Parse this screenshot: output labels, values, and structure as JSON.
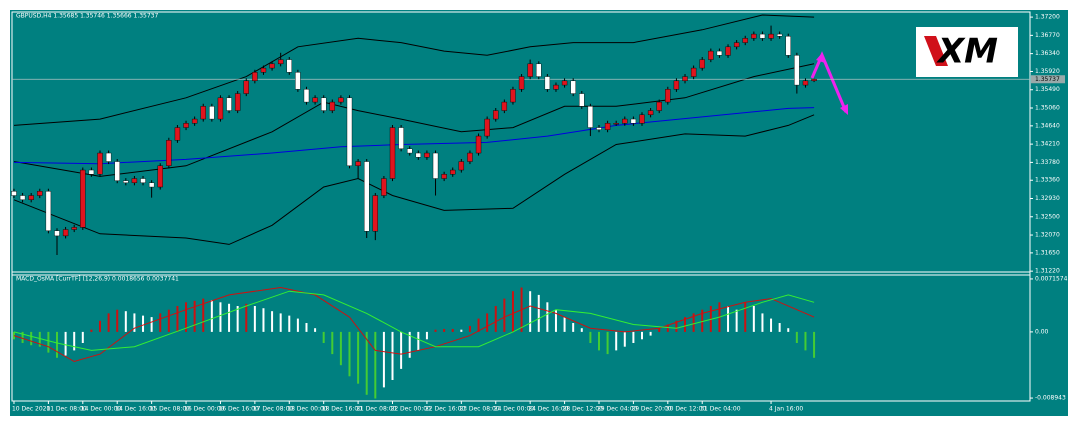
{
  "logo": "XM",
  "chart_data": [
    {
      "type": "candlestick",
      "title": "GBPUSD,H4 1.35685 1.35746 1.35666 1.35737",
      "xlim": [
        -0.23,
        118.1
      ],
      "ylim": [
        1.312,
        1.3732
      ],
      "yticks": [
        {
          "value": 1.372,
          "label": "1.37200"
        },
        {
          "value": 1.3677,
          "label": "1.36770"
        },
        {
          "value": 1.3634,
          "label": "1.36340"
        },
        {
          "value": 1.3592,
          "label": "1.35920"
        },
        {
          "value": 1.3549,
          "label": "1.35490"
        },
        {
          "value": 1.3506,
          "label": "1.35060"
        },
        {
          "value": 1.3464,
          "label": "1.34640"
        },
        {
          "value": 1.3421,
          "label": "1.34210"
        },
        {
          "value": 1.3378,
          "label": "1.33780"
        },
        {
          "value": 1.3336,
          "label": "1.33360"
        },
        {
          "value": 1.3293,
          "label": "1.32930"
        },
        {
          "value": 1.325,
          "label": "1.32500"
        },
        {
          "value": 1.3207,
          "label": "1.32070"
        },
        {
          "value": 1.3165,
          "label": "1.31650"
        },
        {
          "value": 1.3122,
          "label": "1.31220"
        }
      ],
      "current_price": 1.35737,
      "up_color": "#e0141e",
      "down_color": "#ffffff",
      "open": [
        1.331,
        1.33,
        1.329,
        1.33,
        1.331,
        1.3217,
        1.3205,
        1.322,
        1.3225,
        1.336,
        1.335,
        1.34,
        1.338,
        1.3335,
        1.333,
        1.334,
        1.333,
        1.332,
        1.337,
        1.343,
        1.346,
        1.347,
        1.348,
        1.351,
        1.348,
        1.353,
        1.35,
        1.354,
        1.357,
        1.359,
        1.36,
        1.361,
        1.362,
        1.359,
        1.355,
        1.352,
        1.353,
        1.35,
        1.352,
        1.353,
        1.337,
        1.338,
        1.3216,
        1.33,
        1.334,
        1.346,
        1.341,
        1.34,
        1.339,
        1.34,
        1.334,
        1.335,
        1.336,
        1.338,
        1.34,
        1.344,
        1.348,
        1.35,
        1.352,
        1.355,
        1.358,
        1.361,
        1.358,
        1.355,
        1.356,
        1.357,
        1.354,
        1.351,
        1.346,
        1.3455,
        1.347,
        1.347,
        1.348,
        1.347,
        1.349,
        1.35,
        1.352,
        1.355,
        1.357,
        1.358,
        1.36,
        1.362,
        1.364,
        1.363,
        1.365,
        1.366,
        1.367,
        1.368,
        1.367,
        1.368,
        1.3675,
        1.363,
        1.356,
        1.357
      ],
      "high": [
        1.3316,
        1.3306,
        1.3306,
        1.3316,
        1.3316,
        1.3223,
        1.3226,
        1.3231,
        1.3366,
        1.3366,
        1.3406,
        1.3406,
        1.3386,
        1.3341,
        1.3346,
        1.3346,
        1.3336,
        1.3376,
        1.3436,
        1.3466,
        1.3476,
        1.3486,
        1.3516,
        1.3516,
        1.3536,
        1.3536,
        1.3546,
        1.3576,
        1.3596,
        1.3606,
        1.3616,
        1.3636,
        1.3626,
        1.3596,
        1.3556,
        1.3536,
        1.3536,
        1.3526,
        1.3536,
        1.3536,
        1.3386,
        1.3386,
        1.3306,
        1.3346,
        1.3466,
        1.3466,
        1.3416,
        1.3406,
        1.3406,
        1.3406,
        1.3356,
        1.3366,
        1.3386,
        1.3406,
        1.3446,
        1.3486,
        1.3506,
        1.3526,
        1.3556,
        1.3586,
        1.362,
        1.3616,
        1.3586,
        1.3566,
        1.3576,
        1.3576,
        1.3546,
        1.3516,
        1.3466,
        1.3476,
        1.3476,
        1.3486,
        1.3486,
        1.3496,
        1.3506,
        1.3526,
        1.3556,
        1.3576,
        1.3586,
        1.3606,
        1.3626,
        1.3646,
        1.3646,
        1.3656,
        1.3666,
        1.3676,
        1.3686,
        1.3686,
        1.37,
        1.3686,
        1.3681,
        1.3636,
        1.3576,
        1.3575
      ],
      "low": [
        1.3294,
        1.3284,
        1.3284,
        1.3294,
        1.3211,
        1.316,
        1.3199,
        1.3214,
        1.3219,
        1.3344,
        1.3344,
        1.3374,
        1.3329,
        1.3324,
        1.3324,
        1.3324,
        1.3295,
        1.3314,
        1.3364,
        1.3424,
        1.3454,
        1.3464,
        1.3474,
        1.3474,
        1.3474,
        1.3494,
        1.3494,
        1.3534,
        1.3564,
        1.3584,
        1.3594,
        1.3604,
        1.3584,
        1.3544,
        1.3514,
        1.3514,
        1.3494,
        1.3494,
        1.3514,
        1.3364,
        1.334,
        1.32,
        1.3195,
        1.3294,
        1.3334,
        1.3404,
        1.3394,
        1.3384,
        1.3384,
        1.33,
        1.3334,
        1.3344,
        1.3354,
        1.3374,
        1.3394,
        1.3434,
        1.3474,
        1.3494,
        1.3514,
        1.3544,
        1.3574,
        1.3574,
        1.3544,
        1.3544,
        1.3554,
        1.3534,
        1.3504,
        1.344,
        1.3449,
        1.3449,
        1.3464,
        1.3464,
        1.3464,
        1.3464,
        1.3484,
        1.3494,
        1.3514,
        1.3544,
        1.3564,
        1.3574,
        1.3594,
        1.3614,
        1.3624,
        1.3624,
        1.3644,
        1.3654,
        1.3664,
        1.3664,
        1.3664,
        1.3669,
        1.3624,
        1.354,
        1.3554,
        1.3567
      ],
      "close": [
        1.33,
        1.329,
        1.33,
        1.331,
        1.3217,
        1.3205,
        1.322,
        1.3225,
        1.336,
        1.335,
        1.34,
        1.338,
        1.3335,
        1.333,
        1.334,
        1.333,
        1.332,
        1.337,
        1.343,
        1.346,
        1.347,
        1.348,
        1.351,
        1.348,
        1.353,
        1.35,
        1.354,
        1.357,
        1.359,
        1.36,
        1.361,
        1.362,
        1.359,
        1.355,
        1.352,
        1.353,
        1.35,
        1.352,
        1.353,
        1.337,
        1.338,
        1.3216,
        1.33,
        1.334,
        1.346,
        1.341,
        1.34,
        1.339,
        1.34,
        1.334,
        1.335,
        1.336,
        1.338,
        1.34,
        1.344,
        1.348,
        1.35,
        1.352,
        1.355,
        1.358,
        1.361,
        1.358,
        1.355,
        1.356,
        1.357,
        1.354,
        1.351,
        1.346,
        1.3455,
        1.347,
        1.347,
        1.348,
        1.347,
        1.349,
        1.35,
        1.352,
        1.355,
        1.357,
        1.358,
        1.36,
        1.362,
        1.364,
        1.363,
        1.365,
        1.366,
        1.367,
        1.368,
        1.367,
        1.368,
        1.3675,
        1.363,
        1.356,
        1.357,
        1.3574
      ],
      "lines": [
        {
          "color": "#000000",
          "x": [
            0,
            10,
            20,
            27,
            33,
            40,
            45,
            50,
            55,
            60,
            65,
            72,
            80,
            87,
            93
          ],
          "values": [
            1.3465,
            1.348,
            1.353,
            1.358,
            1.365,
            1.367,
            1.366,
            1.364,
            1.363,
            1.365,
            1.366,
            1.366,
            1.369,
            1.3725,
            1.372
          ]
        },
        {
          "color": "#000000",
          "x": [
            0,
            10,
            20,
            30,
            36,
            40,
            45,
            52,
            58,
            64,
            70,
            78,
            86,
            93
          ],
          "values": [
            1.338,
            1.3345,
            1.337,
            1.345,
            1.352,
            1.35,
            1.348,
            1.345,
            1.346,
            1.351,
            1.351,
            1.353,
            1.358,
            1.361
          ]
        },
        {
          "color": "#000000",
          "x": [
            0,
            5,
            10,
            20,
            25,
            30,
            36,
            40,
            44,
            50,
            58,
            64,
            70,
            78,
            85,
            90,
            93
          ],
          "values": [
            1.329,
            1.325,
            1.321,
            1.32,
            1.3185,
            1.323,
            1.332,
            1.334,
            1.33,
            1.3265,
            1.327,
            1.335,
            1.342,
            1.3445,
            1.344,
            1.3465,
            1.349
          ]
        },
        {
          "color": "#0000e0",
          "x": [
            0,
            10,
            20,
            30,
            38,
            45,
            55,
            62,
            70,
            80,
            90,
            93
          ],
          "values": [
            1.3378,
            1.3375,
            1.3385,
            1.34,
            1.3415,
            1.342,
            1.3425,
            1.344,
            1.3465,
            1.3485,
            1.3505,
            1.3507
          ]
        }
      ]
    },
    {
      "type": "macd",
      "title": "MACD_OsMA [CurrTF] (12,26,9) 0.0018656 0.0037741",
      "xlim": [
        -0.23,
        118.1
      ],
      "ylim": [
        -0.00934,
        0.00769
      ],
      "yticks": [
        0.0071574,
        {
          "value": 0,
          "label": "0.00"
        },
        -0.008943
      ],
      "xticks": [
        {
          "value": 0,
          "label": "10 Dec 2020"
        },
        {
          "value": 4,
          "label": "11 Dec 08:00"
        },
        {
          "value": 8,
          "label": "14 Dec 00:00"
        },
        {
          "value": 12,
          "label": "14 Dec 16:00"
        },
        {
          "value": 16,
          "label": "15 Dec 08:00"
        },
        {
          "value": 20,
          "label": "16 Dec 00:00"
        },
        {
          "value": 24,
          "label": "16 Dec 16:00"
        },
        {
          "value": 28,
          "label": "17 Dec 08:00"
        },
        {
          "value": 32,
          "label": "18 Dec 00:00"
        },
        {
          "value": 36,
          "label": "18 Dec 16:00"
        },
        {
          "value": 40,
          "label": "21 Dec 08:00"
        },
        {
          "value": 44,
          "label": "22 Dec 00:00"
        },
        {
          "value": 48,
          "label": "22 Dec 16:00"
        },
        {
          "value": 52,
          "label": "23 Dec 08:00"
        },
        {
          "value": 56,
          "label": "24 Dec 00:00"
        },
        {
          "value": 60,
          "label": "24 Dec 16:00"
        },
        {
          "value": 64,
          "label": "28 Dec 12:00"
        },
        {
          "value": 68,
          "label": "29 Dec 04:00"
        },
        {
          "value": 72,
          "label": "29 Dec 20:00"
        },
        {
          "value": 76,
          "label": "30 Dec 12:00"
        },
        {
          "value": 80,
          "label": "31 Dec 04:00"
        },
        {
          "value": 88,
          "label": "4 Jan 16:00"
        }
      ],
      "colors": {
        "rising_positive": "#cc1111",
        "falling_negative": "#44cc33",
        "other": "#ffffff"
      },
      "values": [
        -0.001,
        -0.0015,
        -0.0018,
        -0.002,
        -0.0028,
        -0.0035,
        -0.0032,
        -0.0025,
        -0.0015,
        0.0003,
        0.0015,
        0.0025,
        0.003,
        0.0028,
        0.0025,
        0.0022,
        0.002,
        0.0025,
        0.003,
        0.0035,
        0.004,
        0.0042,
        0.0045,
        0.0043,
        0.004,
        0.0038,
        0.0035,
        0.0038,
        0.0035,
        0.0032,
        0.0028,
        0.0025,
        0.0022,
        0.0018,
        0.0012,
        0.0005,
        -0.0015,
        -0.003,
        -0.0045,
        -0.006,
        -0.007,
        -0.0085,
        -0.009,
        -0.0075,
        -0.0065,
        -0.005,
        -0.0035,
        -0.0025,
        -0.001,
        0.0003,
        0.0004,
        0.0004,
        0.0003,
        0.0008,
        0.0018,
        0.0025,
        0.0035,
        0.0045,
        0.0055,
        0.006,
        0.0055,
        0.005,
        0.004,
        0.003,
        0.002,
        0.0012,
        0.0005,
        -0.0015,
        -0.0025,
        -0.003,
        -0.0025,
        -0.002,
        -0.0015,
        -0.001,
        -0.0005,
        0.0005,
        0.001,
        0.0015,
        0.002,
        0.0025,
        0.003,
        0.0035,
        0.004,
        0.0035,
        0.003,
        0.004,
        0.0035,
        0.0025,
        0.0018,
        0.0012,
        0.0005,
        -0.0015,
        -0.0025,
        -0.0035
      ],
      "lines": [
        {
          "color": "#cc1111",
          "x": [
            0,
            4,
            7,
            10,
            14,
            20,
            25,
            31,
            35,
            39,
            42,
            45,
            49,
            53,
            57,
            60,
            63,
            67,
            71,
            75,
            80,
            85,
            88,
            91,
            93
          ],
          "values": [
            -0.0005,
            -0.002,
            -0.004,
            -0.003,
            0.0005,
            0.003,
            0.005,
            0.006,
            0.005,
            0.002,
            -0.0025,
            -0.003,
            -0.002,
            -0.0005,
            0.002,
            0.0035,
            0.0025,
            0.0005,
            0.0,
            0.0005,
            0.0025,
            0.004,
            0.0045,
            0.003,
            0.002
          ]
        },
        {
          "color": "#33ee33",
          "x": [
            0,
            5,
            9,
            14,
            20,
            27,
            32,
            36,
            41,
            45,
            49,
            54,
            58,
            63,
            67,
            72,
            77,
            82,
            87,
            90,
            93
          ],
          "values": [
            0.0,
            -0.0015,
            -0.0025,
            -0.002,
            0.0005,
            0.0035,
            0.0055,
            0.005,
            0.0025,
            0.0,
            -0.002,
            -0.002,
            0.0,
            0.003,
            0.0025,
            0.001,
            0.0005,
            0.002,
            0.004,
            0.005,
            0.004
          ]
        }
      ]
    }
  ]
}
